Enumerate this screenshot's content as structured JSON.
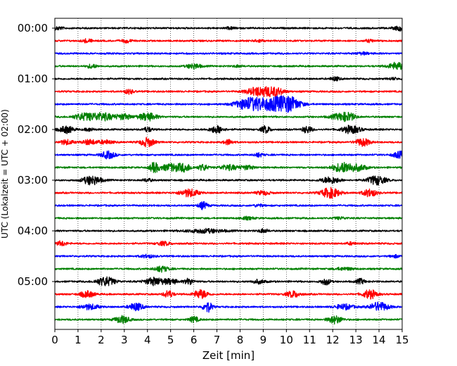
{
  "chart_data": {
    "type": "line",
    "title": "",
    "xlabel": "Zeit  [min]",
    "ylabel": "UTC (Lokalzeit = UTC + 02:00)",
    "xlim": [
      0,
      15
    ],
    "x_ticks": [
      "0",
      "1",
      "2",
      "3",
      "4",
      "5",
      "6",
      "7",
      "8",
      "9",
      "10",
      "11",
      "12",
      "13",
      "14",
      "15"
    ],
    "y_tick_labels": [
      "00:00",
      "01:00",
      "02:00",
      "03:00",
      "04:00",
      "05:00"
    ],
    "grid": "vertical dotted lines at each minute",
    "colors": [
      "#000000",
      "#ff0000",
      "#0000ff",
      "#008000"
    ],
    "rows": [
      {
        "utc": "00:00",
        "color": "#000000",
        "events": [
          [
            0.1,
            1.2,
            0.25
          ],
          [
            14.9,
            1.8,
            0.25
          ],
          [
            7.6,
            0.8,
            0.2
          ]
        ]
      },
      {
        "utc": "00:15",
        "color": "#ff0000",
        "events": [
          [
            1.4,
            1.4,
            0.2
          ],
          [
            3.1,
            1.3,
            0.2
          ],
          [
            8.8,
            1.1,
            0.2
          ],
          [
            13.6,
            0.9,
            0.2
          ]
        ]
      },
      {
        "utc": "00:30",
        "color": "#0000ff",
        "events": [
          [
            13.3,
            0.8,
            0.3
          ]
        ]
      },
      {
        "utc": "00:45",
        "color": "#008000",
        "events": [
          [
            1.6,
            1.6,
            0.2
          ],
          [
            6.0,
            2.0,
            0.3
          ],
          [
            7.9,
            0.8,
            0.2
          ],
          [
            14.8,
            2.8,
            0.4
          ]
        ]
      },
      {
        "utc": "01:00",
        "color": "#000000",
        "events": [
          [
            12.1,
            1.5,
            0.2
          ],
          [
            14.6,
            0.8,
            0.2
          ]
        ]
      },
      {
        "utc": "01:15",
        "color": "#ff0000",
        "events": [
          [
            3.2,
            1.8,
            0.2
          ],
          [
            8.8,
            3.5,
            0.5
          ],
          [
            9.5,
            3.2,
            0.4
          ]
        ]
      },
      {
        "utc": "01:30",
        "color": "#0000ff",
        "events": [
          [
            8.4,
            4.5,
            0.6
          ],
          [
            9.5,
            4.5,
            0.8
          ],
          [
            10.1,
            4.0,
            0.5
          ]
        ]
      },
      {
        "utc": "01:45",
        "color": "#008000",
        "events": [
          [
            1.2,
            2.2,
            0.4
          ],
          [
            2.0,
            3.0,
            0.6
          ],
          [
            3.0,
            2.0,
            0.3
          ],
          [
            4.0,
            3.0,
            0.4
          ],
          [
            12.3,
            2.2,
            0.4
          ],
          [
            12.7,
            2.5,
            0.3
          ]
        ]
      },
      {
        "utc": "02:00",
        "color": "#000000",
        "events": [
          [
            0.5,
            2.8,
            0.3
          ],
          [
            1.5,
            1.2,
            0.2
          ],
          [
            4.0,
            1.8,
            0.2
          ],
          [
            7.0,
            2.8,
            0.3
          ],
          [
            9.1,
            2.8,
            0.2
          ],
          [
            10.9,
            2.8,
            0.2
          ],
          [
            12.8,
            3.0,
            0.4
          ]
        ]
      },
      {
        "utc": "02:15",
        "color": "#ff0000",
        "events": [
          [
            0.5,
            1.8,
            0.3
          ],
          [
            1.5,
            2.0,
            0.3
          ],
          [
            2.2,
            1.5,
            0.3
          ],
          [
            4.0,
            3.5,
            0.3
          ],
          [
            7.5,
            2.0,
            0.2
          ],
          [
            13.3,
            3.0,
            0.3
          ]
        ]
      },
      {
        "utc": "02:30",
        "color": "#0000ff",
        "events": [
          [
            2.3,
            2.8,
            0.3
          ],
          [
            8.8,
            1.5,
            0.2
          ],
          [
            14.9,
            2.5,
            0.3
          ]
        ]
      },
      {
        "utc": "02:45",
        "color": "#008000",
        "events": [
          [
            4.3,
            4.0,
            0.2
          ],
          [
            5.0,
            2.8,
            0.4
          ],
          [
            5.6,
            3.0,
            0.3
          ],
          [
            6.4,
            2.5,
            0.2
          ],
          [
            7.5,
            2.0,
            0.4
          ],
          [
            8.3,
            1.5,
            0.3
          ],
          [
            12.5,
            4.0,
            0.5
          ],
          [
            13.2,
            1.8,
            0.3
          ]
        ]
      },
      {
        "utc": "03:00",
        "color": "#000000",
        "events": [
          [
            1.6,
            3.5,
            0.4
          ],
          [
            4.0,
            1.2,
            0.2
          ],
          [
            11.9,
            2.5,
            0.4
          ],
          [
            13.9,
            3.5,
            0.4
          ]
        ]
      },
      {
        "utc": "03:15",
        "color": "#ff0000",
        "events": [
          [
            5.8,
            3.0,
            0.4
          ],
          [
            9.0,
            1.5,
            0.3
          ],
          [
            11.9,
            4.0,
            0.4
          ],
          [
            13.6,
            3.0,
            0.3
          ]
        ]
      },
      {
        "utc": "03:30",
        "color": "#0000ff",
        "events": [
          [
            6.4,
            2.8,
            0.2
          ],
          [
            8.8,
            1.0,
            0.2
          ]
        ]
      },
      {
        "utc": "03:45",
        "color": "#008000",
        "events": [
          [
            8.3,
            1.0,
            0.3
          ],
          [
            12.3,
            0.8,
            0.3
          ]
        ]
      },
      {
        "utc": "04:00",
        "color": "#000000",
        "events": [
          [
            6.5,
            1.5,
            0.8
          ],
          [
            9.0,
            1.5,
            0.2
          ]
        ]
      },
      {
        "utc": "04:15",
        "color": "#ff0000",
        "events": [
          [
            0.3,
            1.8,
            0.2
          ],
          [
            4.7,
            1.5,
            0.3
          ],
          [
            12.8,
            1.0,
            0.2
          ]
        ]
      },
      {
        "utc": "04:30",
        "color": "#0000ff",
        "events": [
          [
            4.0,
            1.2,
            0.3
          ],
          [
            14.7,
            1.0,
            0.2
          ]
        ]
      },
      {
        "utc": "04:45",
        "color": "#008000",
        "events": [
          [
            4.6,
            2.2,
            0.3
          ],
          [
            12.5,
            1.0,
            0.4
          ]
        ]
      },
      {
        "utc": "05:00",
        "color": "#000000",
        "events": [
          [
            2.2,
            3.5,
            0.4
          ],
          [
            4.3,
            3.0,
            0.4
          ],
          [
            5.0,
            2.0,
            0.3
          ],
          [
            5.8,
            2.5,
            0.2
          ],
          [
            8.8,
            1.5,
            0.3
          ],
          [
            11.7,
            2.5,
            0.2
          ],
          [
            13.2,
            2.0,
            0.2
          ]
        ]
      },
      {
        "utc": "05:15",
        "color": "#ff0000",
        "events": [
          [
            1.4,
            2.5,
            0.3
          ],
          [
            4.9,
            3.0,
            0.2
          ],
          [
            6.3,
            3.5,
            0.3
          ],
          [
            10.3,
            2.5,
            0.3
          ],
          [
            13.6,
            3.5,
            0.3
          ]
        ]
      },
      {
        "utc": "05:30",
        "color": "#0000ff",
        "events": [
          [
            1.5,
            2.0,
            0.4
          ],
          [
            3.5,
            3.0,
            0.3
          ],
          [
            6.6,
            4.0,
            0.2
          ],
          [
            12.5,
            2.0,
            0.4
          ],
          [
            14.0,
            3.5,
            0.4
          ]
        ]
      },
      {
        "utc": "05:45",
        "color": "#008000",
        "events": [
          [
            2.9,
            3.0,
            0.3
          ],
          [
            6.0,
            2.2,
            0.2
          ],
          [
            12.1,
            3.0,
            0.3
          ]
        ]
      }
    ]
  }
}
